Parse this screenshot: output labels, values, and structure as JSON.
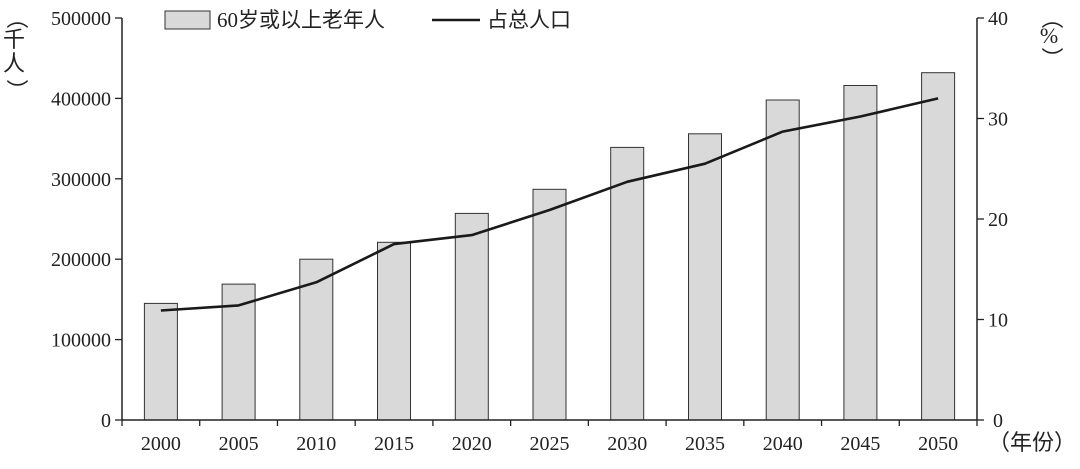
{
  "chart_data": {
    "type": "bar+line",
    "categories": [
      "2000",
      "2005",
      "2010",
      "2015",
      "2020",
      "2025",
      "2030",
      "2035",
      "2040",
      "2045",
      "2050"
    ],
    "series": [
      {
        "name": "60岁或以上老年人",
        "type": "bar",
        "axis": "left",
        "values": [
          145000,
          169000,
          200000,
          221000,
          257000,
          287000,
          339000,
          356000,
          398000,
          416000,
          432000
        ]
      },
      {
        "name": "占总人口",
        "type": "line",
        "axis": "right",
        "values": [
          10.9,
          11.4,
          13.7,
          17.5,
          18.4,
          20.9,
          23.7,
          25.5,
          28.7,
          30.2,
          32.0
        ]
      }
    ],
    "left_axis": {
      "ylim": [
        0,
        500000
      ],
      "ticks": [
        "0",
        "100000",
        "200000",
        "300000",
        "400000",
        "500000"
      ],
      "unit_label": [
        "（",
        "千",
        "人",
        "）"
      ]
    },
    "right_axis": {
      "ylim": [
        0,
        40
      ],
      "ticks": [
        "0",
        "10",
        "20",
        "30",
        "40"
      ],
      "unit_label": [
        "（",
        "%",
        "）"
      ]
    },
    "x_axis": {
      "unit_label": "（年份）"
    },
    "legend_position": "top",
    "grid": false,
    "colors": {
      "bar_fill": "#d9d9d9",
      "bar_stroke": "#333333",
      "line": "#1a1a1a",
      "axis": "#222222"
    }
  }
}
